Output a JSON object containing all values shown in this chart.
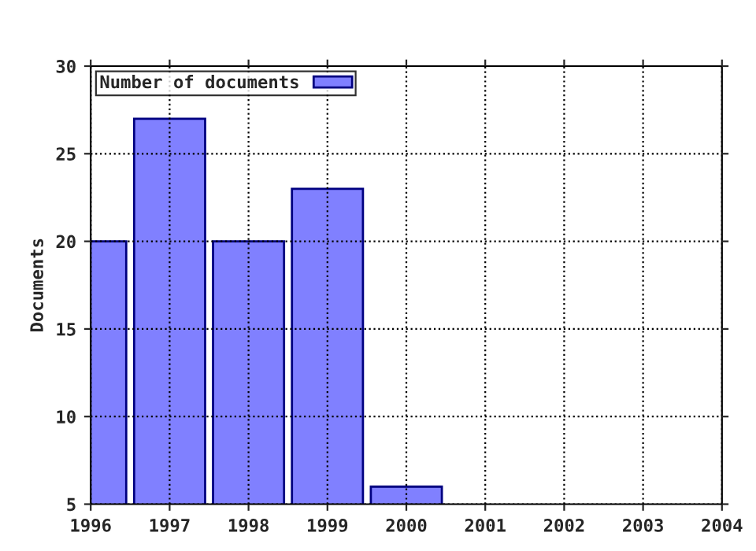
{
  "chart_data": {
    "type": "bar",
    "ylabel": "Documents",
    "x": [
      1996,
      1997,
      1998,
      1999,
      2000
    ],
    "series": [
      {
        "name": "Number of documents",
        "color": "#8080ff",
        "values": [
          20,
          27,
          20,
          23,
          6
        ]
      }
    ],
    "xlim": [
      1996,
      2004
    ],
    "xticks": [
      1996,
      1997,
      1998,
      1999,
      2000,
      2001,
      2002,
      2003,
      2004
    ],
    "ylim": [
      5,
      30
    ],
    "yticks": [
      5,
      10,
      15,
      20,
      25,
      30
    ],
    "grid": true,
    "legend": "top left",
    "line_style": "dotted"
  }
}
